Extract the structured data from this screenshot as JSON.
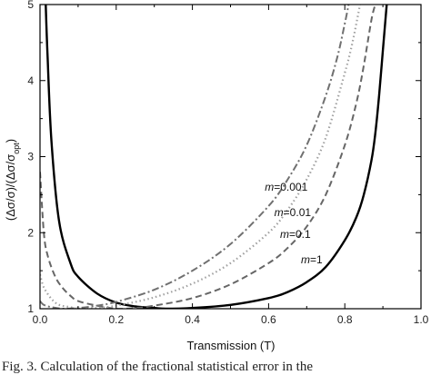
{
  "chart_data": {
    "type": "line",
    "title": "",
    "xlabel": "Transmission (T)",
    "ylabel_main": "(Δσ/σ)/(Δσ/σ",
    "ylabel_sub": "opt",
    "ylabel_close": ")",
    "xlim": [
      0.0,
      1.0
    ],
    "ylim": [
      1,
      5
    ],
    "x_ticks": [
      "0.0",
      "0.2",
      "0.4",
      "0.6",
      "0.8",
      "1.0"
    ],
    "y_ticks": [
      "1",
      "2",
      "3",
      "4",
      "5"
    ],
    "grid": false,
    "legend": "labels on curves",
    "series": [
      {
        "name": "m=1",
        "m": 1,
        "color": "#000000",
        "style": "solid",
        "points": [
          [
            0.015,
            5.0
          ],
          [
            0.02,
            4.3
          ],
          [
            0.03,
            3.2
          ],
          [
            0.05,
            2.15
          ],
          [
            0.08,
            1.6
          ],
          [
            0.1,
            1.42
          ],
          [
            0.15,
            1.2
          ],
          [
            0.2,
            1.08
          ],
          [
            0.25,
            1.03
          ],
          [
            0.3,
            1.01
          ],
          [
            0.33,
            1.0
          ],
          [
            0.4,
            1.01
          ],
          [
            0.5,
            1.05
          ],
          [
            0.6,
            1.14
          ],
          [
            0.65,
            1.22
          ],
          [
            0.7,
            1.35
          ],
          [
            0.75,
            1.55
          ],
          [
            0.8,
            1.9
          ],
          [
            0.83,
            2.2
          ],
          [
            0.85,
            2.5
          ],
          [
            0.87,
            2.95
          ],
          [
            0.88,
            3.3
          ],
          [
            0.89,
            3.8
          ],
          [
            0.9,
            4.4
          ],
          [
            0.91,
            5.0
          ]
        ]
      },
      {
        "name": "m=0.1",
        "m": 0.1,
        "color": "#666666",
        "style": "dashed",
        "points": [
          [
            0.0,
            2.8
          ],
          [
            0.01,
            2.0
          ],
          [
            0.02,
            1.7
          ],
          [
            0.04,
            1.42
          ],
          [
            0.06,
            1.27
          ],
          [
            0.08,
            1.17
          ],
          [
            0.1,
            1.1
          ],
          [
            0.15,
            1.04
          ],
          [
            0.2,
            1.0
          ],
          [
            0.25,
            1.01
          ],
          [
            0.3,
            1.04
          ],
          [
            0.4,
            1.14
          ],
          [
            0.5,
            1.32
          ],
          [
            0.6,
            1.6
          ],
          [
            0.65,
            1.8
          ],
          [
            0.7,
            2.08
          ],
          [
            0.75,
            2.5
          ],
          [
            0.8,
            3.15
          ],
          [
            0.83,
            3.7
          ],
          [
            0.85,
            4.2
          ],
          [
            0.87,
            4.8
          ],
          [
            0.88,
            5.0
          ]
        ]
      },
      {
        "name": "m=0.01",
        "m": 0.01,
        "color": "#a0a0a0",
        "style": "dotted",
        "points": [
          [
            0.0,
            1.45
          ],
          [
            0.01,
            1.28
          ],
          [
            0.03,
            1.13
          ],
          [
            0.05,
            1.05
          ],
          [
            0.08,
            1.02
          ],
          [
            0.1,
            1.0
          ],
          [
            0.15,
            1.01
          ],
          [
            0.2,
            1.04
          ],
          [
            0.3,
            1.15
          ],
          [
            0.4,
            1.33
          ],
          [
            0.5,
            1.6
          ],
          [
            0.6,
            2.0
          ],
          [
            0.65,
            2.3
          ],
          [
            0.7,
            2.7
          ],
          [
            0.75,
            3.25
          ],
          [
            0.8,
            4.1
          ],
          [
            0.82,
            4.5
          ],
          [
            0.84,
            5.0
          ]
        ]
      },
      {
        "name": "m=0.001",
        "m": 0.001,
        "color": "#707070",
        "style": "dashdot",
        "points": [
          [
            0.0,
            1.1
          ],
          [
            0.01,
            1.05
          ],
          [
            0.03,
            1.02
          ],
          [
            0.06,
            1.0
          ],
          [
            0.1,
            1.01
          ],
          [
            0.15,
            1.04
          ],
          [
            0.2,
            1.09
          ],
          [
            0.3,
            1.25
          ],
          [
            0.4,
            1.5
          ],
          [
            0.5,
            1.85
          ],
          [
            0.6,
            2.35
          ],
          [
            0.65,
            2.7
          ],
          [
            0.7,
            3.15
          ],
          [
            0.75,
            3.8
          ],
          [
            0.78,
            4.3
          ],
          [
            0.8,
            4.75
          ],
          [
            0.81,
            5.0
          ]
        ]
      }
    ],
    "annotations": [
      {
        "label_prefix": "m",
        "label_rest": "=0.001",
        "series": "m=0.001",
        "x": 0.59,
        "y": 2.55
      },
      {
        "label_prefix": "m",
        "label_rest": "=0.01",
        "series": "m=0.01",
        "x": 0.615,
        "y": 2.22
      },
      {
        "label_prefix": "m",
        "label_rest": "=0.1",
        "series": "m=0.1",
        "x": 0.63,
        "y": 1.93
      },
      {
        "label_prefix": "m",
        "label_rest": "=1",
        "series": "m=1",
        "x": 0.685,
        "y": 1.6
      }
    ]
  },
  "caption": "Fig. 3. Calculation of the fractional statistical error in the"
}
